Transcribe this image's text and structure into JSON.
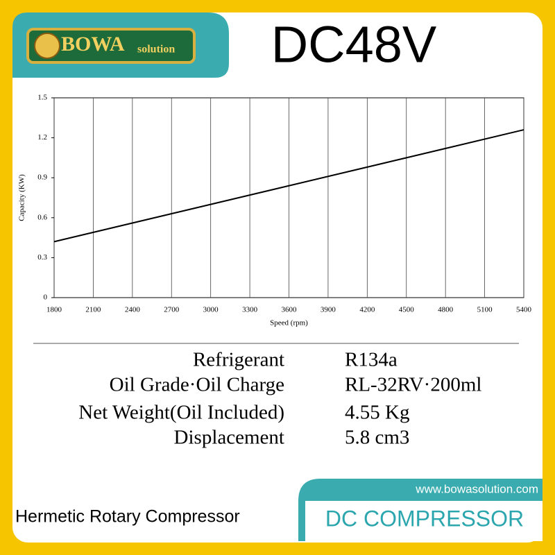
{
  "header": {
    "logo": {
      "brand": "BOWA",
      "tagline": "solution"
    },
    "title": "DC48V"
  },
  "chart_data": {
    "type": "line",
    "x_label": "Speed (rpm)",
    "y_label": "Capacity (KW)",
    "x": [
      1800,
      5400
    ],
    "series": [
      {
        "name": "Capacity",
        "color": "#000000",
        "values": [
          0.42,
          1.26
        ]
      }
    ],
    "xlim": [
      1800,
      5400
    ],
    "xticks": [
      1800,
      2100,
      2400,
      2700,
      3000,
      3300,
      3600,
      3900,
      4200,
      4500,
      4800,
      5100,
      5400
    ],
    "ylim": [
      0,
      1.5
    ],
    "yticks": [
      0,
      0.3,
      0.6,
      0.9,
      1.2,
      1.5
    ],
    "grid": true
  },
  "specs": {
    "rows": [
      [
        "Refrigerant",
        "R134a"
      ],
      [
        "Oil Grade·Oil Charge",
        "RL-32RV·200ml"
      ],
      [
        "Net Weight(Oil Included)",
        "4.55 Kg"
      ],
      [
        "Displacement",
        "5.8 cm3"
      ]
    ]
  },
  "footer": {
    "url": "www.bowasolution.com",
    "product": "Hermetic Rotary Compressor",
    "category": "DC COMPRESSOR"
  }
}
